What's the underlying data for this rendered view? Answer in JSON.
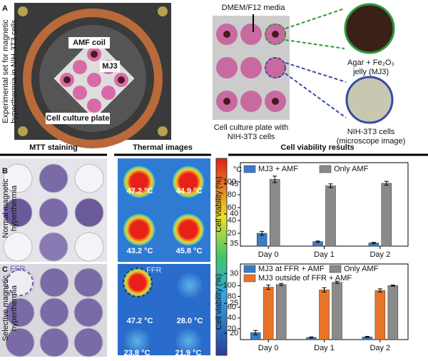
{
  "panel_a": {
    "label": "A",
    "side_label": [
      "Experimental set for magnetic",
      "hyperthermia in NIH-3T3 cells"
    ],
    "photo_labels": [
      "AMF coil",
      "MJ3",
      "Cell culture plate"
    ],
    "media_label": "DMEM/F12 media",
    "plate_caption": [
      "Cell culture plate with",
      "NIH-3T3 cells"
    ],
    "jelly_caption": [
      "Agar + Fe₂O₃",
      "jelly (MJ3)"
    ],
    "cells_caption": [
      "NIH-3T3 cells",
      "(microscope image)"
    ]
  },
  "headers": [
    "MTT staining",
    "Thermal images",
    "Cell viability results"
  ],
  "panel_b": {
    "label": "B",
    "side_label": [
      "Normal magnetic",
      "hyperthermia"
    ],
    "temperatures": [
      "47.2 °C",
      "44.9 °C",
      "43.2 °C",
      "45.8 °C"
    ]
  },
  "panel_c": {
    "label": "C",
    "side_label": [
      "Selective magnetic",
      "hyperthermia"
    ],
    "ffr": "FFR",
    "temperatures": [
      "47.2 °C",
      "28.0 °C",
      "23.8 °C",
      "21.9 °C"
    ]
  },
  "colorbar": {
    "unit": "°C",
    "lim": [
      16.3,
      49.3
    ],
    "ticks": [
      20,
      25,
      30,
      35,
      40,
      45
    ]
  },
  "chart_data": [
    {
      "type": "bar",
      "ylabel": "Cell viability (%)",
      "categories": [
        "Day 0",
        "Day 1",
        "Day 2"
      ],
      "ylim": [
        0,
        130
      ],
      "yticks": [
        20,
        40,
        60,
        80,
        100
      ],
      "series": [
        {
          "name": "MJ3 + AMF",
          "color": "#3b7cc4",
          "values": [
            20,
            7,
            5
          ],
          "errors": [
            3,
            1,
            1
          ]
        },
        {
          "name": "Only AMF",
          "color": "#8a8a8a",
          "values": [
            104,
            94,
            98
          ],
          "errors": [
            5,
            3,
            3
          ]
        }
      ]
    },
    {
      "type": "bar",
      "ylabel": "Cell viability (%)",
      "categories": [
        "Day 0",
        "Day 1",
        "Day 2"
      ],
      "ylim": [
        0,
        140
      ],
      "yticks": [
        20,
        40,
        60,
        80,
        100
      ],
      "series": [
        {
          "name": "MJ3 at FFR + AMF",
          "color": "#3b7cc4",
          "values": [
            13,
            4,
            5
          ],
          "errors": [
            4,
            1,
            1
          ]
        },
        {
          "name": "MJ3 outside of FFR + AMF",
          "color": "#e8742a",
          "values": [
            97,
            92,
            91
          ],
          "errors": [
            4,
            4,
            3
          ]
        },
        {
          "name": "Only AMF",
          "color": "#8a8a8a",
          "values": [
            102,
            106,
            100
          ],
          "errors": [
            2,
            2,
            1
          ]
        }
      ]
    }
  ]
}
